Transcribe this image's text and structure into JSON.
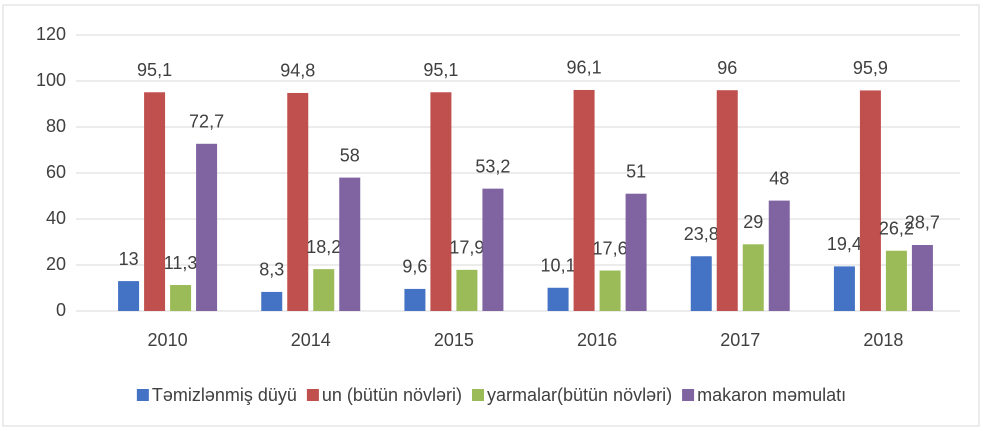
{
  "chart_data": {
    "type": "bar",
    "categories": [
      "2010",
      "2014",
      "2015",
      "2016",
      "2017",
      "2018"
    ],
    "series": [
      {
        "name": "Təmizlənmiş düyü",
        "color": "#4472c4",
        "values": [
          13,
          8.3,
          9.6,
          10.1,
          23.8,
          19.4
        ],
        "value_labels": [
          "13",
          "8,3",
          "9,6",
          "10,1",
          "23,8",
          "19,4"
        ]
      },
      {
        "name": "un (bütün növləri)",
        "color": "#c0504d",
        "values": [
          95.1,
          94.8,
          95.1,
          96.1,
          96,
          95.9
        ],
        "value_labels": [
          "95,1",
          "94,8",
          "95,1",
          "96,1",
          "96",
          "95,9"
        ]
      },
      {
        "name": "yarmalar(bütün növləri)",
        "color": "#9bbb59",
        "values": [
          11.3,
          18.2,
          17.9,
          17.6,
          29,
          26.2
        ],
        "value_labels": [
          "11,3",
          "18,2",
          "17,9",
          "17,6",
          "29",
          "26,2"
        ]
      },
      {
        "name": "makaron məmulatı",
        "color": "#8064a2",
        "values": [
          72.7,
          58,
          53.2,
          51,
          48,
          28.7
        ],
        "value_labels": [
          "72,7",
          "58",
          "53,2",
          "51",
          "48",
          "28,7"
        ]
      }
    ],
    "ylim": [
      0,
      120
    ],
    "yticks": [
      0,
      20,
      40,
      60,
      80,
      100,
      120
    ],
    "grid": true,
    "legend": "bottom"
  }
}
